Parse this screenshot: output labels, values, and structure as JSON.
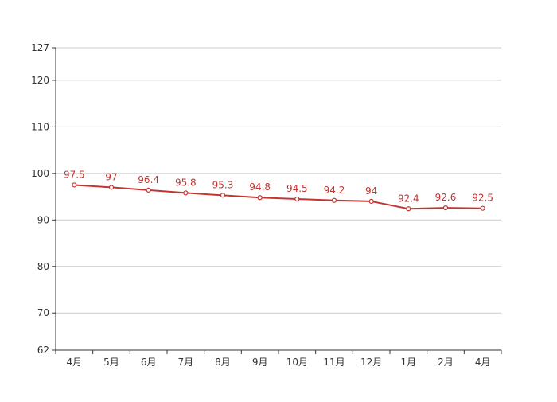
{
  "chart_data": {
    "type": "line",
    "categories": [
      "4月",
      "5月",
      "6月",
      "7月",
      "8月",
      "9月",
      "10月",
      "11月",
      "12月",
      "1月",
      "2月",
      "4月"
    ],
    "series": [
      {
        "values": [
          97.5,
          97,
          96.4,
          95.8,
          95.3,
          94.8,
          94.5,
          94.2,
          94,
          92.4,
          92.6,
          92.5
        ],
        "data_labels": [
          "97.5",
          "97",
          "96.4",
          "95.8",
          "95.3",
          "94.8",
          "94.5",
          "94.2",
          "94",
          "92.4",
          "92.6",
          "92.5"
        ]
      }
    ],
    "ylim": [
      62,
      127
    ],
    "yticks": [
      62,
      70,
      80,
      90,
      100,
      110,
      120,
      127
    ],
    "ytick_labels": [
      "62",
      "70",
      "80",
      "90",
      "100",
      "110",
      "120",
      "127"
    ],
    "grid": true,
    "legend": "none",
    "line_color": "#c23531",
    "grid_color": "#cccccc",
    "axis_color": "#333333"
  }
}
